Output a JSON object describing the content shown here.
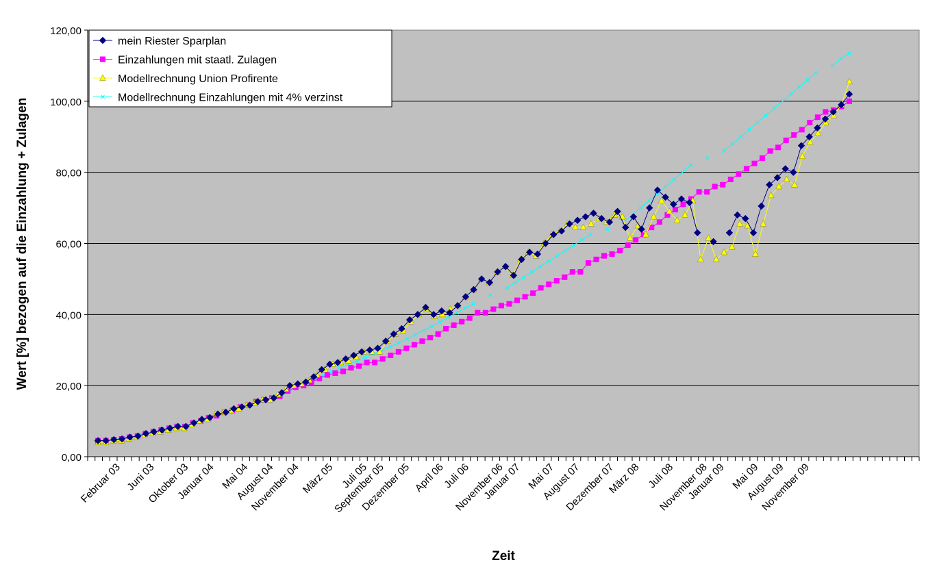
{
  "chart_data": {
    "type": "line",
    "title": "",
    "xlabel": "Zeit",
    "ylabel": "Wert [%] bezogen auf die Einzahlung + Zulagen",
    "ylim": [
      0,
      120
    ],
    "yticks": [
      "0,00",
      "20,00",
      "40,00",
      "60,00",
      "80,00",
      "100,00",
      "120,00"
    ],
    "n_points": 113,
    "x_tick_labels": [
      {
        "index": 0,
        "label": "Februar 03"
      },
      {
        "index": 4,
        "label": "Juni 03"
      },
      {
        "index": 8,
        "label": "Oktober 03"
      },
      {
        "index": 11,
        "label": "Januar 04"
      },
      {
        "index": 15,
        "label": "Mai 04"
      },
      {
        "index": 18,
        "label": "August 04"
      },
      {
        "index": 21,
        "label": "November 04"
      },
      {
        "index": 25,
        "label": "März 05"
      },
      {
        "index": 29,
        "label": "Juli 05"
      },
      {
        "index": 31,
        "label": "September 05"
      },
      {
        "index": 34,
        "label": "Dezember 05"
      },
      {
        "index": 38,
        "label": "April 06"
      },
      {
        "index": 41,
        "label": "Juli 06"
      },
      {
        "index": 45,
        "label": "November 06"
      },
      {
        "index": 47,
        "label": "Januar 07"
      },
      {
        "index": 51,
        "label": "Mai 07"
      },
      {
        "index": 54,
        "label": "August 07"
      },
      {
        "index": 58,
        "label": "Dezember 07"
      },
      {
        "index": 61,
        "label": "März 08"
      },
      {
        "index": 65,
        "label": "Juli 08"
      },
      {
        "index": 69,
        "label": "November 08"
      },
      {
        "index": 71,
        "label": "Januar 09"
      },
      {
        "index": 75,
        "label": "Mai 09"
      },
      {
        "index": 78,
        "label": "August 09"
      },
      {
        "index": 81,
        "label": "November 09"
      }
    ],
    "series": [
      {
        "name": "mein Riester Sparplan",
        "color": "#000080",
        "marker": "diamond",
        "values": [
          4.5,
          4.5,
          4.8,
          5.0,
          5.5,
          5.8,
          6.5,
          7.0,
          7.5,
          8.0,
          8.5,
          8.5,
          9.5,
          10.5,
          11.0,
          12.0,
          12.5,
          13.5,
          14.0,
          14.5,
          15.5,
          16.0,
          16.5,
          18.0,
          20.0,
          20.5,
          21.0,
          22.5,
          24.5,
          26.0,
          26.5,
          27.5,
          28.5,
          29.5,
          30.0,
          30.5,
          32.5,
          34.5,
          36.0,
          38.5,
          40.0,
          42.0,
          40.0,
          41.0,
          40.5,
          42.5,
          45.0,
          47.0,
          50.0,
          49.0,
          52.0,
          53.5,
          51.0,
          55.5,
          57.5,
          57.0,
          60.0,
          62.5,
          63.5,
          65.5,
          66.5,
          67.5,
          68.5,
          67.0,
          66.0,
          69.0,
          64.5,
          67.5,
          64.0,
          70.0,
          75.0,
          73.0,
          71.0,
          72.5,
          71.5,
          63.0,
          null,
          60.5,
          null,
          63.0,
          68.0,
          67.0,
          63.0,
          70.5,
          76.5,
          78.5,
          81.0,
          80.0,
          87.5,
          90.0,
          92.5,
          95.0,
          97.0,
          99.0,
          102.0
        ],
        "x_start": 0
      },
      {
        "name": "Einzahlungen mit staatl. Zulagen",
        "color": "#ff00ff",
        "marker": "square",
        "values": [
          4.5,
          4.5,
          4.8,
          5.0,
          5.5,
          5.8,
          6.5,
          7.0,
          7.5,
          8.0,
          8.5,
          8.5,
          9.5,
          10.0,
          11.0,
          11.5,
          12.5,
          13.0,
          14.0,
          14.5,
          15.5,
          16.0,
          16.5,
          17.0,
          18.5,
          19.5,
          20.0,
          21.0,
          22.0,
          23.0,
          23.5,
          24.0,
          25.0,
          25.5,
          26.5,
          26.5,
          27.5,
          28.5,
          29.5,
          30.5,
          31.5,
          32.5,
          33.5,
          34.5,
          36.0,
          37.0,
          38.0,
          39.0,
          40.5,
          40.5,
          41.5,
          42.5,
          43.0,
          44.0,
          45.0,
          46.0,
          47.5,
          48.5,
          49.5,
          50.5,
          52.0,
          52.0,
          54.5,
          55.5,
          56.5,
          57.0,
          58.0,
          59.5,
          61.0,
          62.5,
          64.5,
          66.0,
          68.0,
          69.5,
          71.0,
          72.5,
          74.5,
          74.5,
          76.0,
          76.5,
          78.0,
          79.5,
          81.0,
          82.5,
          84.0,
          86.0,
          87.0,
          89.0,
          90.5,
          92.0,
          94.0,
          95.5,
          97.0,
          97.5,
          98.5,
          100.0
        ],
        "x_start": 0
      },
      {
        "name": "Modellrechnung Union Profirente",
        "color": "#ffff00",
        "marker": "triangle",
        "values": [
          4.0,
          4.0,
          4.5,
          4.5,
          5.0,
          5.5,
          6.0,
          6.5,
          7.0,
          7.5,
          8.0,
          8.0,
          9.0,
          10.0,
          10.5,
          12.0,
          12.5,
          13.0,
          13.5,
          14.5,
          15.0,
          16.0,
          16.0,
          17.5,
          19.0,
          20.0,
          20.5,
          21.5,
          23.0,
          24.5,
          26.0,
          26.5,
          27.0,
          28.0,
          29.5,
          29.5,
          29.5,
          32.5,
          34.5,
          35.5,
          38.0,
          40.0,
          41.5,
          39.5,
          40.0,
          41.5,
          42.5,
          45.0,
          47.0,
          50.0,
          49.0,
          52.0,
          53.5,
          51.0,
          55.5,
          57.5,
          56.5,
          60.0,
          62.5,
          63.5,
          65.5,
          64.5,
          64.5,
          65.5,
          67.0,
          66.0,
          68.0,
          67.5,
          61.5,
          65.0,
          62.5,
          67.5,
          72.0,
          69.0,
          66.5,
          68.0,
          72.0,
          55.5,
          61.5,
          55.5,
          57.5,
          59.0,
          65.5,
          65.0,
          57.0,
          65.5,
          73.5,
          76.0,
          78.0,
          76.5,
          84.5,
          88.5,
          91.0,
          94.0,
          96.0,
          99.0,
          105.5
        ],
        "x_start": 0
      },
      {
        "name": "Modellrechnung Einzahlungen mit 4% verzinst",
        "color": "#00ffff",
        "marker": "x",
        "values": [
          4.5,
          4.6,
          4.9,
          5.2,
          5.6,
          6.0,
          6.6,
          7.1,
          7.6,
          8.1,
          8.6,
          8.8,
          9.7,
          10.5,
          11.3,
          12.0,
          12.8,
          13.5,
          14.3,
          15.0,
          15.8,
          16.5,
          17.3,
          18.5,
          19.6,
          20.6,
          21.6,
          22.8,
          23.9,
          24.9,
          25.9,
          26.9,
          27.9,
          28.9,
          29.9,
          30.9,
          32.0,
          33.1,
          34.3,
          35.5,
          36.7,
          37.9,
          39.2,
          40.5,
          41.8,
          43.0,
          null,
          45.5,
          null,
          47.5,
          49.0,
          50.5,
          52.0,
          53.5,
          55.0,
          56.5,
          58.0,
          59.5,
          61.0,
          62.5,
          null,
          64.0,
          null,
          66.0,
          68.0,
          70.0,
          72.0,
          74.0,
          76.0,
          78.0,
          80.0,
          82.0,
          null,
          84.0,
          null,
          86.0,
          88.0,
          90.0,
          92.0,
          94.0,
          96.0,
          98.0,
          100.0,
          102.0,
          104.0,
          106.0,
          108.0,
          null,
          110.0,
          112.0,
          113.5
        ],
        "x_start": 0
      }
    ],
    "legend": {
      "placement": "top-left",
      "entries": [
        "mein Riester Sparplan",
        "Einzahlungen mit staatl. Zulagen",
        "Modellrechnung Union Profirente",
        "Modellrechnung Einzahlungen mit 4% verzinst"
      ]
    },
    "grid": {
      "horizontal": true,
      "vertical": false
    },
    "plot_background": "#c0c0c0"
  }
}
